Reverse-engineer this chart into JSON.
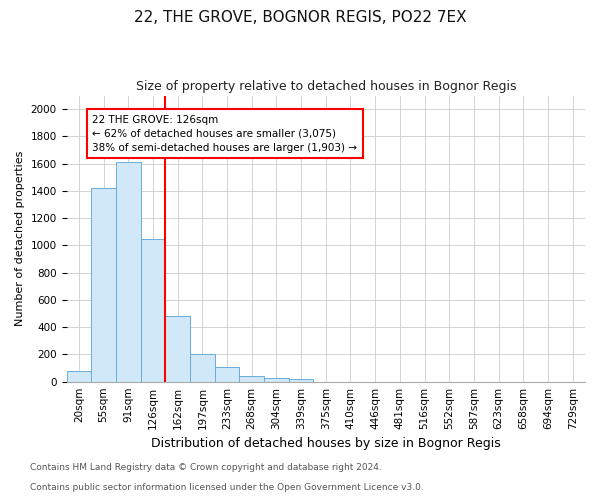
{
  "title": "22, THE GROVE, BOGNOR REGIS, PO22 7EX",
  "subtitle": "Size of property relative to detached houses in Bognor Regis",
  "xlabel": "Distribution of detached houses by size in Bognor Regis",
  "ylabel": "Number of detached properties",
  "categories": [
    "20sqm",
    "55sqm",
    "91sqm",
    "126sqm",
    "162sqm",
    "197sqm",
    "233sqm",
    "268sqm",
    "304sqm",
    "339sqm",
    "375sqm",
    "410sqm",
    "446sqm",
    "481sqm",
    "516sqm",
    "552sqm",
    "587sqm",
    "623sqm",
    "658sqm",
    "694sqm",
    "729sqm"
  ],
  "values": [
    80,
    1420,
    1610,
    1050,
    480,
    200,
    105,
    40,
    30,
    20,
    0,
    0,
    0,
    0,
    0,
    0,
    0,
    0,
    0,
    0,
    0
  ],
  "bar_color": "#d0e8f8",
  "bar_edge_color": "#6aacda",
  "redline_x": 3.5,
  "annotation_text": "22 THE GROVE: 126sqm\n← 62% of detached houses are smaller (3,075)\n38% of semi-detached houses are larger (1,903) →",
  "annotation_box_color": "white",
  "annotation_box_edge": "red",
  "redline_color": "red",
  "ylim": [
    0,
    2100
  ],
  "yticks": [
    0,
    200,
    400,
    600,
    800,
    1000,
    1200,
    1400,
    1600,
    1800,
    2000
  ],
  "grid_color": "#cccccc",
  "footnote1": "Contains HM Land Registry data © Crown copyright and database right 2024.",
  "footnote2": "Contains public sector information licensed under the Open Government Licence v3.0.",
  "title_fontsize": 11,
  "subtitle_fontsize": 9,
  "xlabel_fontsize": 9,
  "ylabel_fontsize": 8,
  "tick_fontsize": 7.5,
  "annotation_fontsize": 7.5,
  "footnote_fontsize": 6.5,
  "bg_color": "white"
}
